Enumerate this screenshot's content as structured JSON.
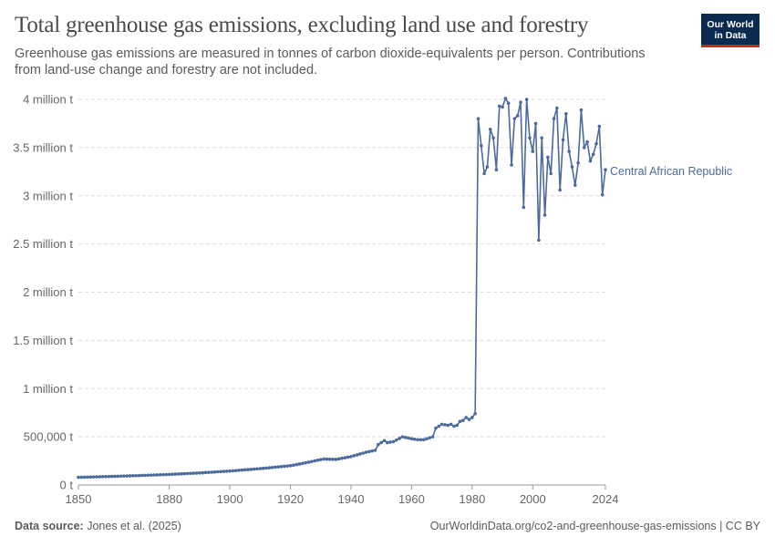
{
  "header": {
    "title": "Total greenhouse gas emissions, excluding land use and forestry",
    "subtitle": "Greenhouse gas emissions are measured in tonnes of carbon dioxide-equivalents per person. Contributions from land-use change and forestry are not included."
  },
  "logo": {
    "line1": "Our World",
    "line2": "in Data"
  },
  "footer": {
    "source_label": "Data source:",
    "source_text": "Jones et al. (2025)",
    "url_text": "OurWorldinData.org/co2-and-greenhouse-gas-emissions | CC BY"
  },
  "colors": {
    "series": "#4c6a9c",
    "grid": "#dddddd",
    "axis": "#666666"
  },
  "chart_data": {
    "type": "line",
    "title": "Total greenhouse gas emissions, excluding land use and forestry",
    "xlabel": "",
    "ylabel": "",
    "xlim": [
      1850,
      2024
    ],
    "ylim": [
      0,
      4000000
    ],
    "grid": true,
    "x_ticks": [
      {
        "value": 1850,
        "label": "1850"
      },
      {
        "value": 1880,
        "label": "1880"
      },
      {
        "value": 1900,
        "label": "1900"
      },
      {
        "value": 1920,
        "label": "1920"
      },
      {
        "value": 1940,
        "label": "1940"
      },
      {
        "value": 1960,
        "label": "1960"
      },
      {
        "value": 1980,
        "label": "1980"
      },
      {
        "value": 2000,
        "label": "2000"
      },
      {
        "value": 2024,
        "label": "2024"
      }
    ],
    "y_ticks": [
      {
        "value": 0,
        "label": "0 t"
      },
      {
        "value": 500000,
        "label": "500,000 t"
      },
      {
        "value": 1000000,
        "label": "1 million t"
      },
      {
        "value": 1500000,
        "label": "1.5 million t"
      },
      {
        "value": 2000000,
        "label": "2 million t"
      },
      {
        "value": 2500000,
        "label": "2.5 million t"
      },
      {
        "value": 3000000,
        "label": "3 million t"
      },
      {
        "value": 3500000,
        "label": "3.5 million t"
      },
      {
        "value": 4000000,
        "label": "4 million t"
      }
    ],
    "series": [
      {
        "name": "Central African Republic",
        "anchors": [
          [
            1850,
            80000
          ],
          [
            1860,
            88000
          ],
          [
            1870,
            98000
          ],
          [
            1880,
            110000
          ],
          [
            1890,
            125000
          ],
          [
            1900,
            145000
          ],
          [
            1910,
            170000
          ],
          [
            1920,
            200000
          ],
          [
            1925,
            230000
          ],
          [
            1931,
            270000
          ],
          [
            1935,
            265000
          ],
          [
            1940,
            295000
          ],
          [
            1945,
            340000
          ],
          [
            1948,
            360000
          ],
          [
            1949,
            420000
          ],
          [
            1951,
            460000
          ],
          [
            1952,
            440000
          ],
          [
            1954,
            450000
          ],
          [
            1957,
            500000
          ],
          [
            1960,
            480000
          ],
          [
            1962,
            470000
          ],
          [
            1964,
            470000
          ],
          [
            1966,
            490000
          ],
          [
            1967,
            500000
          ],
          [
            1968,
            590000
          ],
          [
            1970,
            630000
          ],
          [
            1972,
            620000
          ],
          [
            1973,
            630000
          ],
          [
            1974,
            610000
          ],
          [
            1975,
            620000
          ],
          [
            1976,
            660000
          ],
          [
            1977,
            670000
          ],
          [
            1978,
            700000
          ],
          [
            1979,
            680000
          ],
          [
            1980,
            700000
          ],
          [
            1981,
            740000
          ],
          [
            1982,
            3800000
          ],
          [
            1983,
            3520000
          ],
          [
            1984,
            3230000
          ],
          [
            1985,
            3300000
          ],
          [
            1986,
            3690000
          ],
          [
            1987,
            3600000
          ],
          [
            1988,
            3270000
          ],
          [
            1989,
            3930000
          ],
          [
            1990,
            3920000
          ],
          [
            1991,
            4010000
          ],
          [
            1992,
            3960000
          ],
          [
            1993,
            3320000
          ],
          [
            1994,
            3800000
          ],
          [
            1995,
            3830000
          ],
          [
            1996,
            3970000
          ],
          [
            1997,
            2880000
          ],
          [
            1998,
            4000000
          ],
          [
            1999,
            3600000
          ],
          [
            2000,
            3460000
          ],
          [
            2001,
            3750000
          ],
          [
            2002,
            2540000
          ],
          [
            2003,
            3600000
          ],
          [
            2004,
            2800000
          ],
          [
            2005,
            3400000
          ],
          [
            2006,
            3230000
          ],
          [
            2007,
            3800000
          ],
          [
            2008,
            3910000
          ],
          [
            2009,
            3060000
          ],
          [
            2010,
            3580000
          ],
          [
            2011,
            3850000
          ],
          [
            2012,
            3460000
          ],
          [
            2013,
            3300000
          ],
          [
            2014,
            3110000
          ],
          [
            2015,
            3340000
          ],
          [
            2016,
            3890000
          ],
          [
            2017,
            3500000
          ],
          [
            2018,
            3560000
          ],
          [
            2019,
            3360000
          ],
          [
            2020,
            3430000
          ],
          [
            2021,
            3540000
          ],
          [
            2022,
            3720000
          ],
          [
            2023,
            3010000
          ],
          [
            2024,
            3270000
          ]
        ]
      }
    ]
  }
}
